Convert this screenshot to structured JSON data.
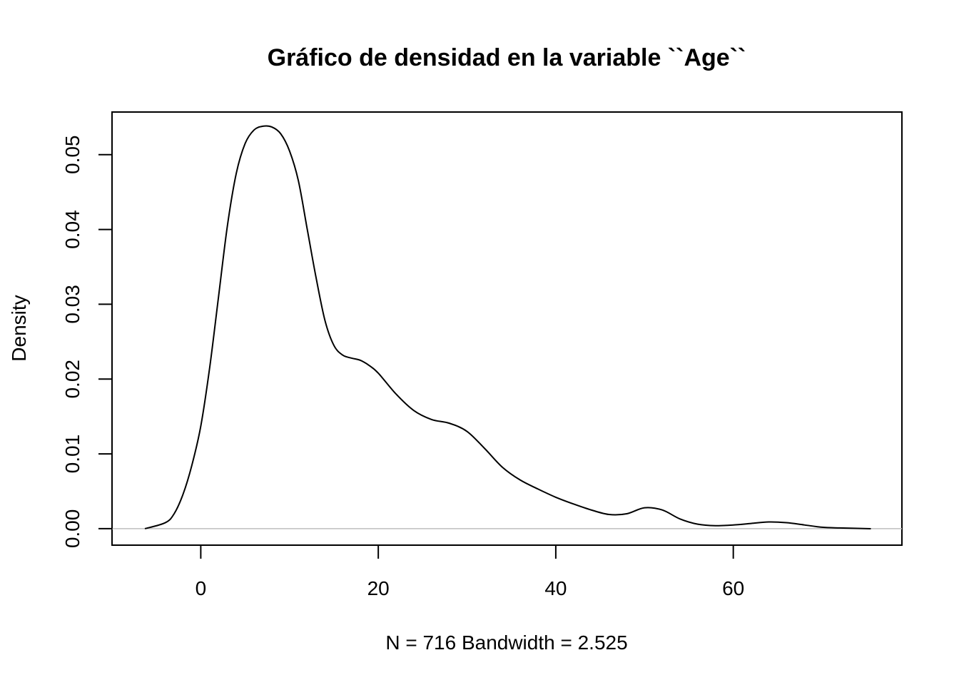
{
  "chart_data": {
    "type": "line",
    "title": "Gráfico de densidad en la variable ``Age``",
    "xlabel": "N = 716   Bandwidth = 2.525",
    "ylabel": "Density",
    "xlim": [
      -10,
      79
    ],
    "ylim": [
      -0.0022,
      0.0557
    ],
    "x_ticks": [
      0,
      20,
      40,
      60
    ],
    "x_tick_labels": [
      "0",
      "20",
      "40",
      "60"
    ],
    "y_ticks": [
      0,
      0.01,
      0.02,
      0.03,
      0.04,
      0.05
    ],
    "y_tick_labels": [
      "0.00",
      "0.01",
      "0.02",
      "0.03",
      "0.04",
      "0.05"
    ],
    "baseline": 0,
    "grid": false,
    "series": [
      {
        "x": [
          -6.3,
          -4,
          -3,
          -2,
          -1,
          0,
          1,
          2,
          3,
          4,
          5,
          6,
          7,
          8,
          9,
          10,
          11,
          12,
          13,
          14,
          15,
          16,
          17,
          18,
          19,
          20,
          22,
          24,
          26,
          28,
          30,
          32,
          34,
          36,
          38,
          40,
          42,
          44,
          46,
          48,
          50,
          52,
          54,
          56,
          58,
          60,
          62,
          64,
          66,
          68,
          70,
          72,
          75.5
        ],
        "y": [
          0.0,
          0.0008,
          0.002,
          0.0046,
          0.0085,
          0.0137,
          0.0215,
          0.031,
          0.0405,
          0.0475,
          0.0515,
          0.0533,
          0.0538,
          0.0537,
          0.0528,
          0.0505,
          0.0465,
          0.04,
          0.0335,
          0.0278,
          0.0245,
          0.0232,
          0.0228,
          0.0225,
          0.0218,
          0.0208,
          0.018,
          0.0158,
          0.0146,
          0.0141,
          0.013,
          0.0107,
          0.0082,
          0.0065,
          0.0053,
          0.0042,
          0.0033,
          0.0025,
          0.0019,
          0.002,
          0.0028,
          0.0025,
          0.0013,
          0.0006,
          0.0004,
          0.0005,
          0.0007,
          0.0009,
          0.0008,
          0.0005,
          0.0002,
          0.0001,
          0.0
        ]
      }
    ]
  }
}
